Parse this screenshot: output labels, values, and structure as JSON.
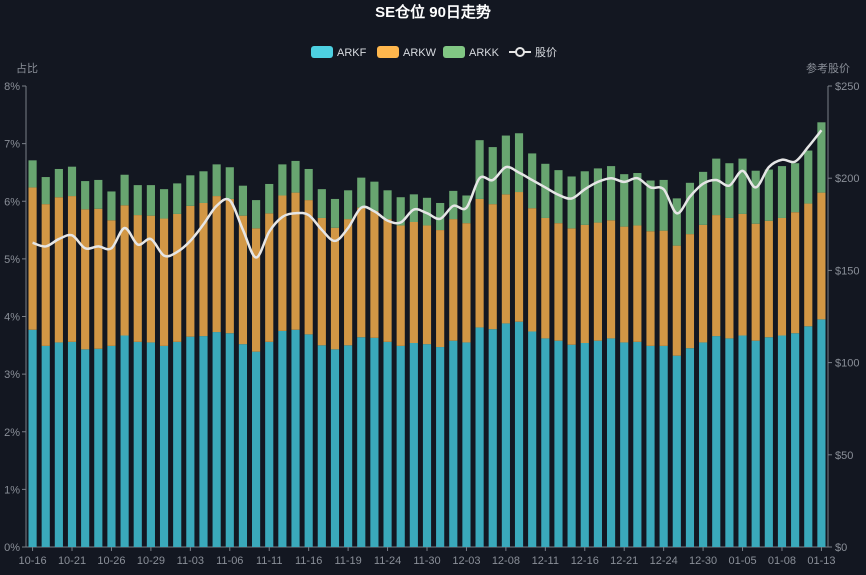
{
  "chart_data": {
    "type": "bar",
    "stacked": true,
    "title": "SE仓位 90日走势",
    "ylabel": "占比",
    "y2label": "参考股价",
    "ylim": [
      0,
      8
    ],
    "y2lim": [
      0,
      250
    ],
    "yticks": [
      "0%",
      "1%",
      "2%",
      "3%",
      "4%",
      "5%",
      "6%",
      "7%",
      "8%"
    ],
    "y2ticks": [
      "$0",
      "$50",
      "$100",
      "$150",
      "$200",
      "$250"
    ],
    "x_labels": [
      "10-16",
      "10-21",
      "10-26",
      "10-29",
      "11-03",
      "11-06",
      "11-11",
      "11-16",
      "11-19",
      "11-24",
      "11-30",
      "12-03",
      "12-08",
      "12-11",
      "12-16",
      "12-21",
      "12-24",
      "12-30",
      "01-05",
      "01-08",
      "01-13"
    ],
    "x_label_every": 3,
    "legend": {
      "position": "top-center"
    },
    "series": [
      {
        "name": "ARKF",
        "type": "bar",
        "color": "#3aa9bb",
        "legend_color": "#4dd0e1",
        "values": [
          3.77,
          3.49,
          3.55,
          3.56,
          3.43,
          3.44,
          3.49,
          3.67,
          3.56,
          3.55,
          3.49,
          3.56,
          3.65,
          3.66,
          3.73,
          3.71,
          3.52,
          3.39,
          3.56,
          3.75,
          3.77,
          3.69,
          3.5,
          3.43,
          3.5,
          3.64,
          3.63,
          3.56,
          3.49,
          3.54,
          3.52,
          3.47,
          3.58,
          3.55,
          3.81,
          3.78,
          3.88,
          3.91,
          3.74,
          3.62,
          3.58,
          3.51,
          3.54,
          3.58,
          3.62,
          3.55,
          3.56,
          3.49,
          3.49,
          3.32,
          3.45,
          3.55,
          3.66,
          3.62,
          3.67,
          3.58,
          3.64,
          3.67,
          3.71,
          3.83,
          3.95
        ]
      },
      {
        "name": "ARKW",
        "type": "bar",
        "color": "#d29745",
        "legend_color": "#ffb74d",
        "values": [
          2.47,
          2.46,
          2.52,
          2.53,
          2.43,
          2.43,
          2.18,
          2.26,
          2.2,
          2.2,
          2.21,
          2.22,
          2.27,
          2.31,
          2.36,
          2.33,
          2.23,
          2.14,
          2.23,
          2.35,
          2.38,
          2.33,
          2.21,
          2.11,
          2.19,
          2.25,
          2.2,
          2.13,
          2.09,
          2.1,
          2.06,
          2.03,
          2.11,
          2.07,
          2.23,
          2.17,
          2.24,
          2.25,
          2.14,
          2.09,
          2.04,
          2.02,
          2.05,
          2.05,
          2.05,
          2.01,
          2.02,
          1.99,
          2.0,
          1.91,
          1.98,
          2.04,
          2.1,
          2.09,
          2.11,
          2.03,
          2.02,
          2.04,
          2.1,
          2.13,
          2.2
        ]
      },
      {
        "name": "ARKK",
        "type": "bar",
        "color": "#68a570",
        "legend_color": "#81c784",
        "values": [
          0.47,
          0.47,
          0.49,
          0.51,
          0.49,
          0.5,
          0.5,
          0.53,
          0.52,
          0.53,
          0.51,
          0.53,
          0.53,
          0.55,
          0.55,
          0.55,
          0.52,
          0.49,
          0.51,
          0.54,
          0.55,
          0.54,
          0.5,
          0.5,
          0.5,
          0.52,
          0.51,
          0.5,
          0.49,
          0.48,
          0.48,
          0.47,
          0.49,
          0.48,
          1.02,
          0.99,
          1.02,
          1.02,
          0.95,
          0.94,
          0.92,
          0.9,
          0.93,
          0.94,
          0.94,
          0.91,
          0.91,
          0.88,
          0.88,
          0.82,
          0.89,
          0.92,
          0.98,
          0.95,
          0.96,
          0.92,
          0.89,
          0.9,
          0.85,
          0.92,
          1.22
        ]
      },
      {
        "name": "股价",
        "type": "line",
        "axis": "right",
        "color": "#e6e6e6",
        "legend_color": "#e6e6e6",
        "values": [
          165,
          163,
          167,
          169,
          162,
          163,
          162,
          173,
          164,
          167,
          158,
          160,
          166,
          175,
          185,
          188,
          172,
          157,
          171,
          179,
          181,
          180,
          172,
          166,
          173,
          184,
          182,
          177,
          176,
          183,
          181,
          178,
          185,
          184,
          200,
          199,
          206,
          203,
          199,
          195,
          191,
          189,
          194,
          198,
          200,
          198,
          200,
          195,
          194,
          181,
          190,
          197,
          199,
          196,
          204,
          195,
          206,
          210,
          209,
          217,
          226
        ]
      }
    ]
  }
}
